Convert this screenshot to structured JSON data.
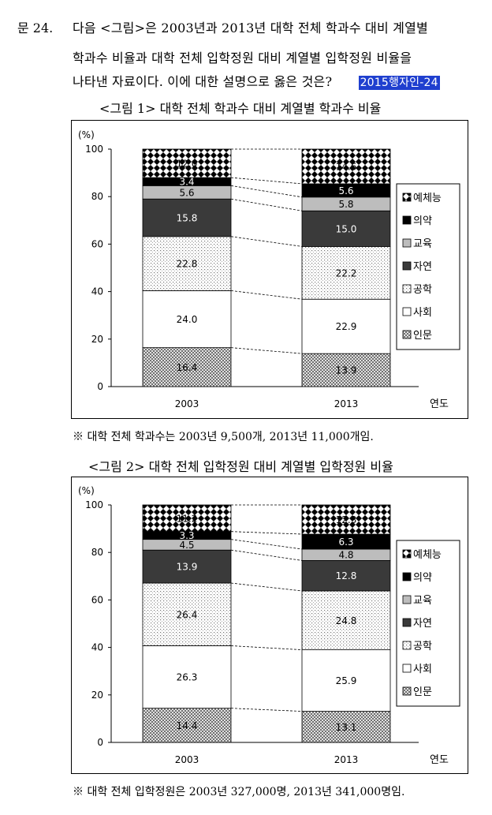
{
  "question": {
    "number": "문 24.",
    "line1": "다음 <그림>은 2003년과 2013년 대학 전체 학과수 대비 계열별",
    "line2": "학과수 비율과 대학 전체 입학정원 대비 계열별 입학정원 비율을",
    "line3": "나타낸 자료이다. 이에 대한 설명으로 옳은 것은?",
    "tag": "2015행자인-24"
  },
  "colors": {
    "tag_bg": "#1f3fcf",
    "jayeon": "#3a3a3a",
    "gyoyuk": "#bdbdbd",
    "uiyak": "#000000"
  },
  "chart_data": [
    {
      "type": "bar",
      "title": "<그림 1> 대학 전체 학과수 대비 계열별 학과수 비율",
      "ylabel": "(%)",
      "xlabel": "연도",
      "ylim": [
        0,
        100
      ],
      "yticks": [
        "0",
        "20",
        "40",
        "60",
        "80",
        "100"
      ],
      "categories": [
        "2003",
        "2013"
      ],
      "stacked": true,
      "grid": false,
      "legend_position": "right",
      "series": [
        {
          "name": "인문",
          "values": [
            16.4,
            13.9
          ]
        },
        {
          "name": "사회",
          "values": [
            24.0,
            22.9
          ]
        },
        {
          "name": "공학",
          "values": [
            22.8,
            22.2
          ]
        },
        {
          "name": "자연",
          "values": [
            15.8,
            15.0
          ]
        },
        {
          "name": "교육",
          "values": [
            5.6,
            5.8
          ]
        },
        {
          "name": "의약",
          "values": [
            3.4,
            5.6
          ]
        },
        {
          "name": "예체능",
          "values": [
            12.0,
            14.6
          ]
        }
      ],
      "note": "※ 대학 전체 학과수는 2003년 9,500개, 2013년 11,000개임."
    },
    {
      "type": "bar",
      "title": "<그림 2> 대학 전체 입학정원 대비 계열별 입학정원 비율",
      "ylabel": "(%)",
      "xlabel": "연도",
      "ylim": [
        0,
        100
      ],
      "yticks": [
        "0",
        "20",
        "40",
        "60",
        "80",
        "100"
      ],
      "categories": [
        "2003",
        "2013"
      ],
      "stacked": true,
      "grid": false,
      "legend_position": "right",
      "series": [
        {
          "name": "인문",
          "values": [
            14.4,
            13.1
          ]
        },
        {
          "name": "사회",
          "values": [
            26.3,
            25.9
          ]
        },
        {
          "name": "공학",
          "values": [
            26.4,
            24.8
          ]
        },
        {
          "name": "자연",
          "values": [
            13.9,
            12.8
          ]
        },
        {
          "name": "교육",
          "values": [
            4.5,
            4.8
          ]
        },
        {
          "name": "의약",
          "values": [
            3.3,
            6.3
          ]
        },
        {
          "name": "예체능",
          "values": [
            11.2,
            12.3
          ]
        }
      ],
      "note": "※ 대학 전체 입학정원은 2003년 327,000명, 2013년 341,000명임."
    }
  ]
}
